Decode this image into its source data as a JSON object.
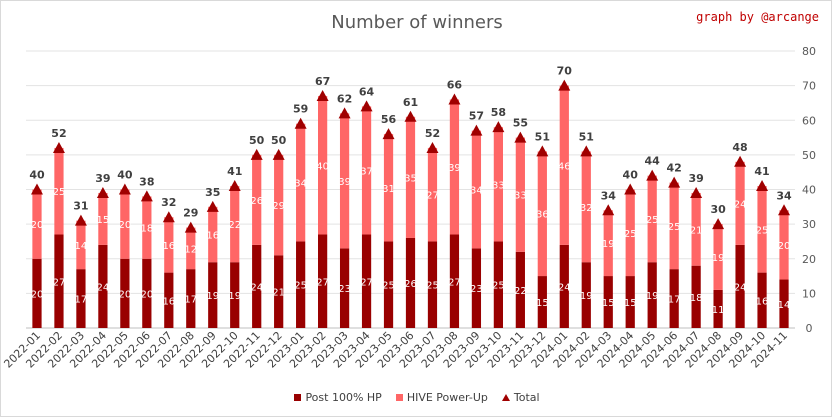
{
  "title": "Number of winners",
  "credit": "graph by @arcange",
  "chart_data": {
    "type": "bar",
    "stacked": true,
    "title": "Number of winners",
    "categories": [
      "2022-01",
      "2022-02",
      "2022-03",
      "2022-04",
      "2022-05",
      "2022-06",
      "2022-07",
      "2022-08",
      "2022-09",
      "2022-10",
      "2022-11",
      "2022-12",
      "2023-01",
      "2023-02",
      "2023-03",
      "2023-04",
      "2023-05",
      "2023-06",
      "2023-07",
      "2023-08",
      "2023-09",
      "2023-10",
      "2023-11",
      "2023-12",
      "2024-01",
      "2024-02",
      "2024-03",
      "2024-04",
      "2024-05",
      "2024-06",
      "2024-07",
      "2024-08",
      "2024-09",
      "2024-10",
      "2024-11"
    ],
    "series": [
      {
        "name": "Post 100% HP",
        "color": "#990000",
        "values": [
          20,
          27,
          17,
          24,
          20,
          20,
          16,
          17,
          19,
          19,
          24,
          21,
          25,
          27,
          23,
          27,
          25,
          26,
          25,
          27,
          23,
          25,
          22,
          15,
          24,
          19,
          15,
          15,
          19,
          17,
          18,
          11,
          24,
          16,
          14
        ]
      },
      {
        "name": "HIVE Power-Up",
        "color": "#ff6666",
        "values": [
          20,
          25,
          14,
          15,
          20,
          18,
          16,
          12,
          16,
          22,
          26,
          29,
          34,
          40,
          39,
          37,
          31,
          35,
          27,
          39,
          34,
          33,
          33,
          36,
          46,
          32,
          19,
          25,
          25,
          25,
          21,
          19,
          24,
          25,
          20
        ]
      },
      {
        "name": "Total",
        "color": "#a00000",
        "marker": "triangle",
        "values": [
          40,
          52,
          31,
          39,
          40,
          38,
          32,
          29,
          35,
          41,
          50,
          50,
          59,
          67,
          62,
          64,
          56,
          61,
          52,
          66,
          57,
          58,
          55,
          51,
          70,
          51,
          34,
          40,
          44,
          42,
          39,
          30,
          48,
          41,
          34
        ]
      }
    ],
    "y_axis": {
      "side": "right",
      "min": 0,
      "max": 80,
      "ticks": [
        0,
        10,
        20,
        30,
        40,
        50,
        60,
        70,
        80
      ]
    },
    "grid": true,
    "legend": "bottom"
  }
}
